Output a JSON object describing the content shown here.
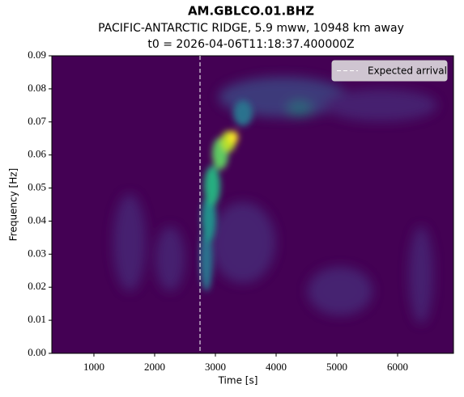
{
  "chart_data": {
    "type": "spectrogram",
    "title": "AM.GBLCO.01.BHZ",
    "subtitle": "PACIFIC-ANTARCTIC RIDGE, 5.9 mww, 10948 km away",
    "subtitle2": "t0 = 2026-04-06T11:18:37.400000Z",
    "xlabel": "Time [s]",
    "ylabel": "Frequency [Hz]",
    "xlim": [
      307,
      6920
    ],
    "xticks": [
      1000,
      2000,
      3000,
      4000,
      5000,
      6000
    ],
    "ylim": [
      0,
      0.09
    ],
    "yticks": [
      {
        "value": 0,
        "label": "0.00"
      },
      {
        "value": 0.01,
        "label": "0.01"
      },
      {
        "value": 0.02,
        "label": "0.02"
      },
      {
        "value": 0.03,
        "label": "0.03"
      },
      {
        "value": 0.04,
        "label": "0.04"
      },
      {
        "value": 0.05,
        "label": "0.05"
      },
      {
        "value": 0.06,
        "label": "0.06"
      },
      {
        "value": 0.07,
        "label": "0.07"
      },
      {
        "value": 0.08,
        "label": "0.08"
      },
      {
        "value": 0.09,
        "label": "0.09"
      }
    ],
    "arrival": {
      "name": "Expected arrival",
      "value": 2747,
      "color": "#ffffff"
    },
    "legend": "upper right"
  }
}
